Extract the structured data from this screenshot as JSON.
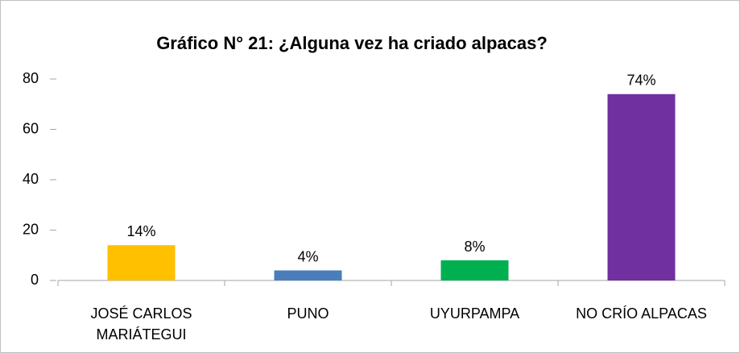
{
  "chart_data": {
    "type": "bar",
    "title": "Gráfico N° 21: ¿Alguna vez ha criado alpacas?",
    "categories": [
      "JOSÉ CARLOS MARIÁTEGUI",
      "PUNO",
      "UYURPAMPA",
      "NO CRÍO ALPACAS"
    ],
    "values": [
      14,
      4,
      8,
      74
    ],
    "value_labels": [
      "14%",
      "4%",
      "8%",
      "74%"
    ],
    "colors": [
      "#ffc000",
      "#4a7ebb",
      "#00b050",
      "#7030a0"
    ],
    "ylim": [
      0,
      80
    ],
    "yticks": [
      0,
      20,
      40,
      60,
      80
    ],
    "grid": false
  }
}
